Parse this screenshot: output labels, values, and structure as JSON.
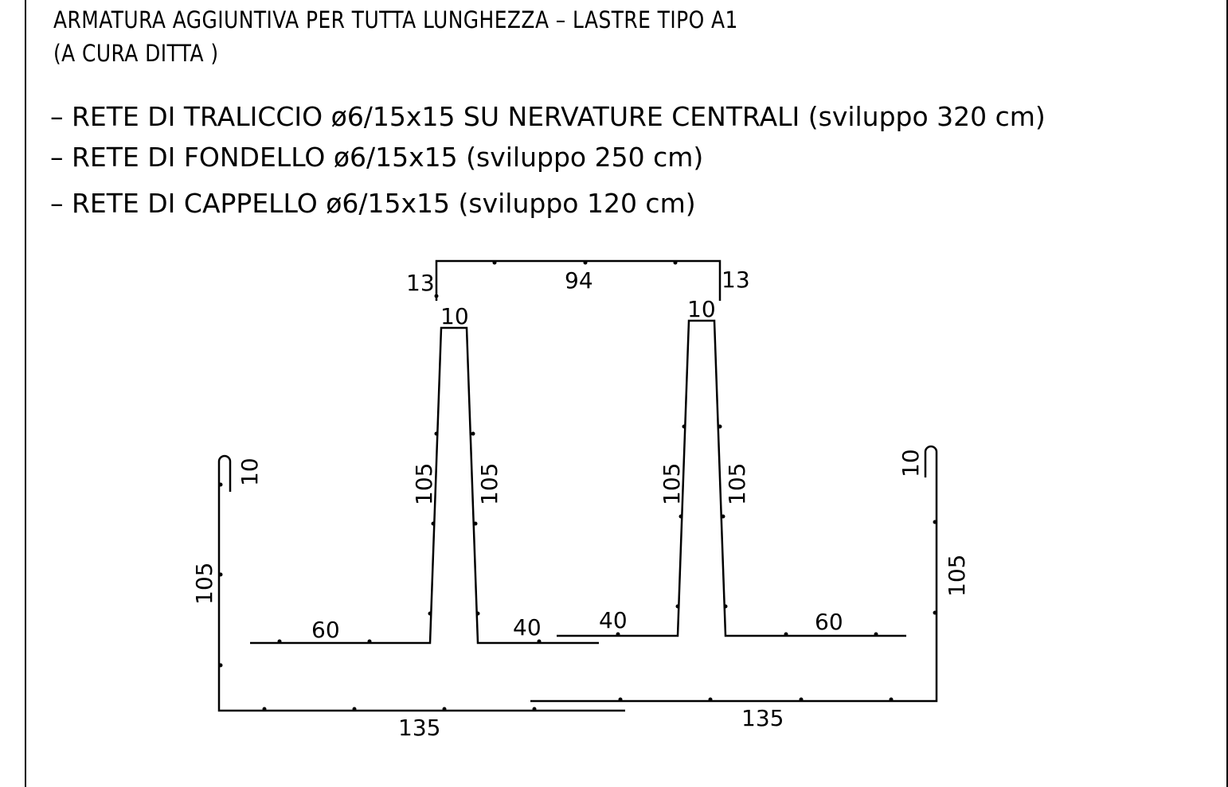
{
  "header": {
    "title": "ARMATURA AGGIUNTIVA PER TUTTA LUNGHEZZA – LASTRE TIPO A1",
    "subtitle": "(A CURA DITTA )"
  },
  "items": [
    "–  RETE DI TRALICCIO ø6/15x15 SU NERVATURE CENTRALI (sviluppo 320 cm)",
    "–  RETE DI FONDELLO ø6/15x15 (sviluppo 250 cm)",
    "–  RETE DI CAPPELLO ø6/15x15 (sviluppo 120 cm)"
  ],
  "dimensions": {
    "cap_left": "13",
    "cap_top": "94",
    "cap_right": "13",
    "rib_top_left": "10",
    "rib_top_right": "10",
    "rib_left_a": "105",
    "rib_left_b": "105",
    "rib_right_a": "105",
    "rib_right_b": "105",
    "hook_left": "10",
    "hook_right": "10",
    "side_left": "105",
    "side_right": "105",
    "bottom_left_seg_60": "60",
    "bottom_left_seg_40": "40",
    "bottom_right_seg_40": "40",
    "bottom_right_seg_60": "60",
    "base_left": "135",
    "base_right": "135"
  },
  "colors": {
    "line": "#000000",
    "background": "#ffffff"
  }
}
